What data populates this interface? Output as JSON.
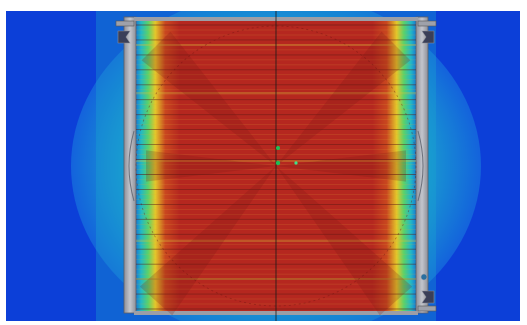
{
  "view": {
    "kind": "cfd-contour-plot",
    "orientation": "front",
    "background": "#ffffff"
  },
  "colormap": {
    "low": "#0b3cd6",
    "low_mid": "#1fb9c4",
    "mid": "#4fd36a",
    "high_mid": "#e6c728",
    "high": "#b8251f"
  },
  "model": {
    "frame_color": "#a9abb3",
    "frame_edge_color": "#5a5d66",
    "fin_count": 57,
    "inlet_arrow_count": 3,
    "icons": [
      "inlet-arrow-icon",
      "probe-marker-icon"
    ]
  }
}
